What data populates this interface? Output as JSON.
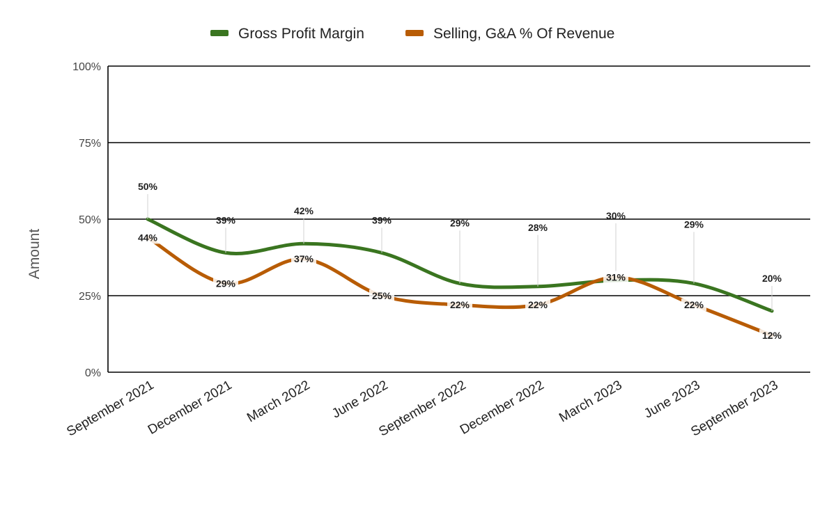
{
  "chart_data": {
    "type": "line",
    "title": "",
    "xlabel": "",
    "ylabel": "Amount",
    "ylim": [
      0,
      100
    ],
    "y_ticks": [
      "0%",
      "25%",
      "50%",
      "75%",
      "100%"
    ],
    "y_tick_values": [
      0,
      25,
      50,
      75,
      100
    ],
    "categories": [
      "September 2021",
      "December 2021",
      "March 2022",
      "June 2022",
      "September 2022",
      "December 2022",
      "March 2023",
      "June 2023",
      "September 2023"
    ],
    "series": [
      {
        "name": "Gross Profit Margin",
        "color": "#3a7520",
        "values": [
          50,
          39,
          42,
          39,
          29,
          28,
          30,
          29,
          20
        ],
        "labels": [
          "50%",
          "39%",
          "42%",
          "39%",
          "29%",
          "28%",
          "30%",
          "29%",
          "20%"
        ]
      },
      {
        "name": "Selling, G&A % Of Revenue",
        "color": "#b85c05",
        "values": [
          44,
          29,
          37,
          25,
          22,
          22,
          31,
          22,
          12
        ],
        "labels": [
          "44%",
          "29%",
          "37%",
          "25%",
          "22%",
          "22%",
          "31%",
          "22%",
          "12%"
        ]
      }
    ],
    "grid": true,
    "legend_position": "top-center",
    "smooth": true
  }
}
